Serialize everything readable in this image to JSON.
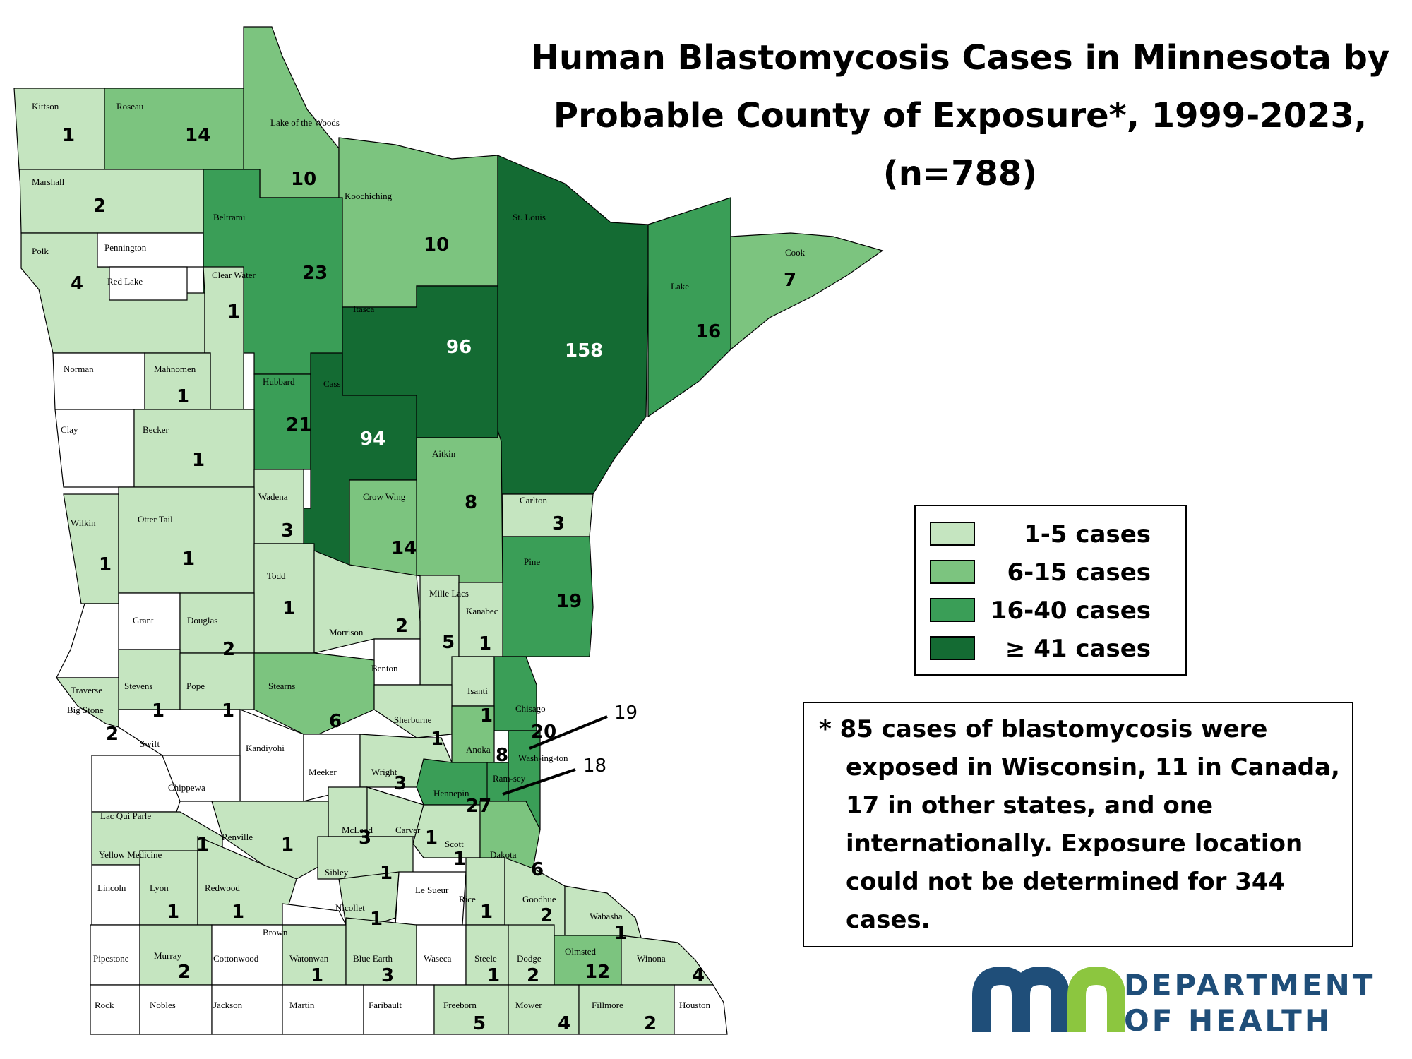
{
  "title": {
    "line1": "Human Blastomycosis Cases in Minnesota by",
    "line2": "Probable County of Exposure*, 1999-2023,",
    "line3": "(n=788)"
  },
  "legend": [
    {
      "label": "1-5 cases",
      "color": "#c5e5c0"
    },
    {
      "label": "6-15 cases",
      "color": "#7cc47f"
    },
    {
      "label": "16-40 cases",
      "color": "#3a9e57"
    },
    {
      "label": "≥ 41 cases",
      "color": "#146b33"
    }
  ],
  "footnote": [
    "* 85 cases of blastomycosis were",
    "exposed in Wisconsin, 11 in Canada,",
    "17 in other states, and one",
    "internationally. Exposure location",
    "could not be determined for 344",
    "cases."
  ],
  "callouts": {
    "washington": "19",
    "ramsey": "18"
  },
  "logo": {
    "line1": "DEPARTMENT",
    "line2": "OF HEALTH",
    "mark": "mn",
    "color_blue": "#1f4e79",
    "color_green": "#8cc63f"
  },
  "counties": [
    {
      "name": "Kittson",
      "count": "1",
      "color": "#c5e5c0"
    },
    {
      "name": "Roseau",
      "count": "14",
      "color": "#7cc47f"
    },
    {
      "name": "Lake of the Woods",
      "count": "10",
      "color": "#7cc47f"
    },
    {
      "name": "Marshall",
      "count": "2",
      "color": "#c5e5c0"
    },
    {
      "name": "Beltrami",
      "count": "23",
      "color": "#3a9e57"
    },
    {
      "name": "Koochiching",
      "count": "10",
      "color": "#7cc47f"
    },
    {
      "name": "St. Louis",
      "count": "158",
      "color": "#146b33"
    },
    {
      "name": "Cook",
      "count": "7",
      "color": "#7cc47f"
    },
    {
      "name": "Lake",
      "count": "16",
      "color": "#3a9e57"
    },
    {
      "name": "Polk",
      "count": "4",
      "color": "#c5e5c0"
    },
    {
      "name": "Pennington",
      "count": "",
      "color": "#ffffff"
    },
    {
      "name": "Red Lake",
      "count": "",
      "color": "#ffffff"
    },
    {
      "name": "Clear Water",
      "count": "1",
      "color": "#c5e5c0"
    },
    {
      "name": "Itasca",
      "count": "96",
      "color": "#146b33"
    },
    {
      "name": "Norman",
      "count": "",
      "color": "#ffffff"
    },
    {
      "name": "Mahnomen",
      "count": "1",
      "color": "#c5e5c0"
    },
    {
      "name": "Hubbard",
      "count": "21",
      "color": "#3a9e57"
    },
    {
      "name": "Cass",
      "count": "94",
      "color": "#146b33"
    },
    {
      "name": "Clay",
      "count": "",
      "color": "#ffffff"
    },
    {
      "name": "Becker",
      "count": "1",
      "color": "#c5e5c0"
    },
    {
      "name": "Aitkin",
      "count": "8",
      "color": "#7cc47f"
    },
    {
      "name": "Carlton",
      "count": "3",
      "color": "#c5e5c0"
    },
    {
      "name": "Wadena",
      "count": "3",
      "color": "#c5e5c0"
    },
    {
      "name": "Crow Wing",
      "count": "14",
      "color": "#7cc47f"
    },
    {
      "name": "Wilkin",
      "count": "1",
      "color": "#c5e5c0"
    },
    {
      "name": "Otter Tail",
      "count": "1",
      "color": "#c5e5c0"
    },
    {
      "name": "Pine",
      "count": "19",
      "color": "#3a9e57"
    },
    {
      "name": "Todd",
      "count": "1",
      "color": "#c5e5c0"
    },
    {
      "name": "Mille Lacs",
      "count": "5",
      "color": "#c5e5c0"
    },
    {
      "name": "Kanabec",
      "count": "1",
      "color": "#c5e5c0"
    },
    {
      "name": "Grant",
      "count": "",
      "color": "#ffffff"
    },
    {
      "name": "Douglas",
      "count": "2",
      "color": "#c5e5c0"
    },
    {
      "name": "Morrison",
      "count": "2",
      "color": "#c5e5c0"
    },
    {
      "name": "Benton",
      "count": "",
      "color": "#ffffff"
    },
    {
      "name": "Traverse",
      "count": "",
      "color": "#ffffff"
    },
    {
      "name": "Stevens",
      "count": "1",
      "color": "#c5e5c0"
    },
    {
      "name": "Pope",
      "count": "1",
      "color": "#c5e5c0"
    },
    {
      "name": "Stearns",
      "count": "6",
      "color": "#7cc47f"
    },
    {
      "name": "Isanti",
      "count": "1",
      "color": "#c5e5c0"
    },
    {
      "name": "Chisago",
      "count": "20",
      "color": "#3a9e57"
    },
    {
      "name": "Big Stone",
      "count": "2",
      "color": "#c5e5c0"
    },
    {
      "name": "Sherburne",
      "count": "1",
      "color": "#c5e5c0"
    },
    {
      "name": "Anoka",
      "count": "8",
      "color": "#7cc47f"
    },
    {
      "name": "Swift",
      "count": "",
      "color": "#ffffff"
    },
    {
      "name": "Kandiyohi",
      "count": "",
      "color": "#ffffff"
    },
    {
      "name": "Meeker",
      "count": "",
      "color": "#ffffff"
    },
    {
      "name": "Wright",
      "count": "3",
      "color": "#c5e5c0"
    },
    {
      "name": "Wash-ing-ton",
      "count": "",
      "color": "#3a9e57"
    },
    {
      "name": "Chippewa",
      "count": "",
      "color": "#ffffff"
    },
    {
      "name": "Hennepin",
      "count": "27",
      "color": "#3a9e57"
    },
    {
      "name": "Ram-sey",
      "count": "",
      "color": "#3a9e57"
    },
    {
      "name": "Lac Qui Parle",
      "count": "",
      "color": "#ffffff"
    },
    {
      "name": "McLeod",
      "count": "3",
      "color": "#c5e5c0"
    },
    {
      "name": "Carver",
      "count": "1",
      "color": "#c5e5c0"
    },
    {
      "name": "Yellow Medicine",
      "count": "1",
      "color": "#c5e5c0"
    },
    {
      "name": "Renville",
      "count": "1",
      "color": "#c5e5c0"
    },
    {
      "name": "Scott",
      "count": "1",
      "color": "#c5e5c0"
    },
    {
      "name": "Dakota",
      "count": "6",
      "color": "#7cc47f"
    },
    {
      "name": "Sibley",
      "count": "1",
      "color": "#c5e5c0"
    },
    {
      "name": "Lincoln",
      "count": "",
      "color": "#ffffff"
    },
    {
      "name": "Lyon",
      "count": "1",
      "color": "#c5e5c0"
    },
    {
      "name": "Redwood",
      "count": "1",
      "color": "#c5e5c0"
    },
    {
      "name": "Le Sueur",
      "count": "",
      "color": "#ffffff"
    },
    {
      "name": "Rice",
      "count": "1",
      "color": "#c5e5c0"
    },
    {
      "name": "Goodhue",
      "count": "2",
      "color": "#c5e5c0"
    },
    {
      "name": "Nicollet",
      "count": "1",
      "color": "#c5e5c0"
    },
    {
      "name": "Wabasha",
      "count": "1",
      "color": "#c5e5c0"
    },
    {
      "name": "Brown",
      "count": "",
      "color": "#ffffff"
    },
    {
      "name": "Pipestone",
      "count": "",
      "color": "#ffffff"
    },
    {
      "name": "Murray",
      "count": "2",
      "color": "#c5e5c0"
    },
    {
      "name": "Cottonwood",
      "count": "",
      "color": "#ffffff"
    },
    {
      "name": "Watonwan",
      "count": "1",
      "color": "#c5e5c0"
    },
    {
      "name": "Blue Earth",
      "count": "3",
      "color": "#c5e5c0"
    },
    {
      "name": "Waseca",
      "count": "",
      "color": "#ffffff"
    },
    {
      "name": "Steele",
      "count": "1",
      "color": "#c5e5c0"
    },
    {
      "name": "Dodge",
      "count": "2",
      "color": "#c5e5c0"
    },
    {
      "name": "Olmsted",
      "count": "12",
      "color": "#7cc47f"
    },
    {
      "name": "Winona",
      "count": "4",
      "color": "#c5e5c0"
    },
    {
      "name": "Rock",
      "count": "",
      "color": "#ffffff"
    },
    {
      "name": "Nobles",
      "count": "",
      "color": "#ffffff"
    },
    {
      "name": "Jackson",
      "count": "",
      "color": "#ffffff"
    },
    {
      "name": "Martin",
      "count": "",
      "color": "#ffffff"
    },
    {
      "name": "Faribault",
      "count": "",
      "color": "#ffffff"
    },
    {
      "name": "Freeborn",
      "count": "5",
      "color": "#c5e5c0"
    },
    {
      "name": "Mower",
      "count": "4",
      "color": "#c5e5c0"
    },
    {
      "name": "Fillmore",
      "count": "2",
      "color": "#c5e5c0"
    },
    {
      "name": "Houston",
      "count": "",
      "color": "#ffffff"
    }
  ]
}
